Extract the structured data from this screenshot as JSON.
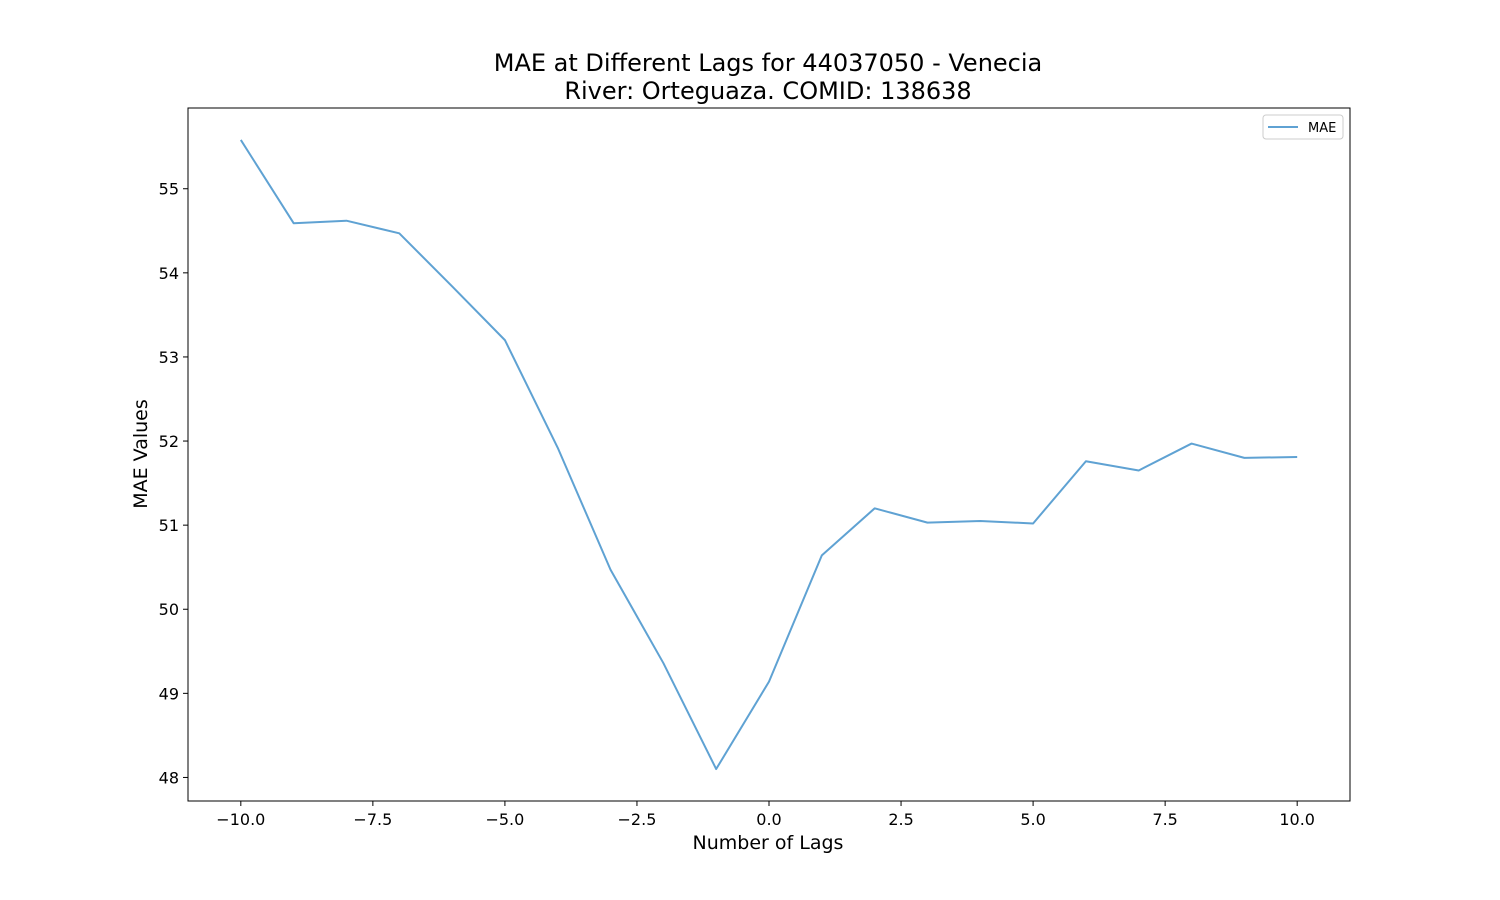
{
  "colors": {
    "background": "#ffffff",
    "axes": "#000000",
    "series_line": "#5fa2d3"
  },
  "chart_data": {
    "type": "line",
    "title": "MAE at Different Lags for 44037050 - Venecia",
    "subtitle": "River: Orteguaza. COMID: 138638",
    "xlabel": "Number of Lags",
    "ylabel": "MAE Values",
    "xlim": [
      -11,
      11
    ],
    "ylim": [
      47.72,
      55.96
    ],
    "xticks": [
      -10,
      -7.5,
      -5,
      -2.5,
      0,
      2.5,
      5,
      7.5,
      10
    ],
    "xtick_labels": [
      "−10.0",
      "−7.5",
      "−5.0",
      "−2.5",
      "0.0",
      "2.5",
      "5.0",
      "7.5",
      "10.0"
    ],
    "yticks": [
      48,
      49,
      50,
      51,
      52,
      53,
      54,
      55
    ],
    "ytick_labels": [
      "48",
      "49",
      "50",
      "51",
      "52",
      "53",
      "54",
      "55"
    ],
    "grid": false,
    "legend": {
      "placement": "upper right",
      "entries": [
        "MAE"
      ]
    },
    "series": [
      {
        "name": "MAE",
        "x": [
          -10,
          -9,
          -8,
          -7,
          -6,
          -5,
          -4,
          -3,
          -2,
          -1,
          0,
          1,
          2,
          3,
          4,
          5,
          6,
          7,
          8,
          9,
          10
        ],
        "y": [
          55.58,
          54.59,
          54.62,
          54.47,
          53.84,
          53.2,
          51.92,
          50.47,
          49.36,
          48.1,
          49.14,
          50.64,
          51.2,
          51.03,
          51.05,
          51.02,
          51.76,
          51.65,
          51.97,
          51.8,
          51.81
        ]
      }
    ]
  }
}
